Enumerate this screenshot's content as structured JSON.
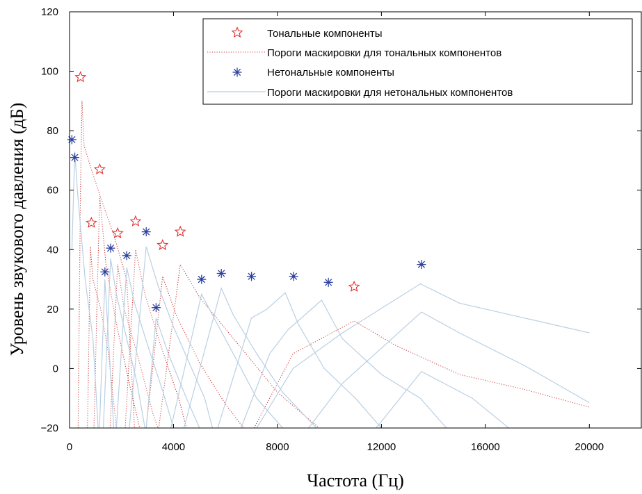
{
  "chart_data": {
    "type": "scatter",
    "xlabel": "Частота (Гц)",
    "ylabel": "Уровень звукового давления (дБ)",
    "xlim": [
      0,
      22000
    ],
    "ylim": [
      -20,
      120
    ],
    "xticks": [
      0,
      4000,
      8000,
      12000,
      16000,
      20000
    ],
    "yticks": [
      -20,
      0,
      20,
      40,
      60,
      80,
      100,
      120
    ],
    "grid": false,
    "legend_position": "top-right",
    "colors": {
      "tonal": "#e03030",
      "tonal_threshold": "#c84040",
      "nontonal": "#2b3f9e",
      "nontonal_threshold": "#b9cfe3"
    },
    "series": [
      {
        "name": "Тональные компоненты",
        "marker": "star",
        "points": [
          [
            420,
            98
          ],
          [
            840,
            49
          ],
          [
            1160,
            67
          ],
          [
            1850,
            45.5
          ],
          [
            2540,
            49.5
          ],
          [
            3580,
            41.5
          ],
          [
            4260,
            46
          ],
          [
            10950,
            27.5
          ]
        ]
      },
      {
        "name": "Пороги маскировки для тональных компонентов",
        "style": "dotted",
        "curves": [
          [
            [
              330,
              -20
            ],
            [
              420,
              60
            ],
            [
              480,
              90
            ],
            [
              560,
              75
            ],
            [
              800,
              68
            ],
            [
              1100,
              60
            ],
            [
              1700,
              45
            ],
            [
              2200,
              30
            ],
            [
              2500,
              -20
            ]
          ],
          [
            [
              690,
              -20
            ],
            [
              800,
              41
            ],
            [
              900,
              30
            ],
            [
              1200,
              20
            ],
            [
              1500,
              5
            ],
            [
              1800,
              -20
            ]
          ],
          [
            [
              940,
              -20
            ],
            [
              1160,
              58
            ],
            [
              1400,
              35
            ],
            [
              1800,
              15
            ],
            [
              2300,
              -5
            ],
            [
              2700,
              -20
            ]
          ],
          [
            [
              1560,
              -20
            ],
            [
              1850,
              35
            ],
            [
              2100,
              20
            ],
            [
              2600,
              5
            ],
            [
              3200,
              -15
            ],
            [
              3400,
              -20
            ]
          ],
          [
            [
              2140,
              -20
            ],
            [
              2540,
              40
            ],
            [
              2900,
              25
            ],
            [
              3500,
              8
            ],
            [
              4200,
              -10
            ],
            [
              4500,
              -20
            ]
          ],
          [
            [
              2950,
              -20
            ],
            [
              3580,
              31
            ],
            [
              4100,
              18
            ],
            [
              5000,
              2
            ],
            [
              6000,
              -12
            ],
            [
              6700,
              -20
            ]
          ],
          [
            [
              3430,
              -20
            ],
            [
              4260,
              35
            ],
            [
              5000,
              24
            ],
            [
              6500,
              8
            ],
            [
              8000,
              -8
            ],
            [
              9600,
              -20
            ]
          ],
          [
            [
              7100,
              -20
            ],
            [
              8600,
              5
            ],
            [
              10950,
              16
            ],
            [
              12500,
              8
            ],
            [
              15000,
              -2
            ],
            [
              17500,
              -7
            ],
            [
              20000,
              -13
            ]
          ]
        ]
      },
      {
        "name": "Нетональные компоненты",
        "marker": "asterisk",
        "points": [
          [
            90,
            77
          ],
          [
            200,
            71
          ],
          [
            1360,
            32.5
          ],
          [
            1580,
            40.5
          ],
          [
            2200,
            38
          ],
          [
            2950,
            46
          ],
          [
            3330,
            20.5
          ],
          [
            5080,
            30
          ],
          [
            5840,
            32
          ],
          [
            7000,
            31
          ],
          [
            8620,
            31
          ],
          [
            9960,
            29
          ],
          [
            13540,
            35
          ]
        ]
      },
      {
        "name": "Пороги маскировки для нетональных компонентов",
        "style": "solid",
        "curves": [
          [
            [
              90,
              40
            ],
            [
              200,
              73
            ],
            [
              300,
              60
            ],
            [
              600,
              30
            ],
            [
              900,
              10
            ],
            [
              1100,
              -20
            ]
          ],
          [
            [
              1150,
              -20
            ],
            [
              1360,
              30
            ],
            [
              1500,
              10
            ],
            [
              1700,
              -20
            ]
          ],
          [
            [
              1300,
              -20
            ],
            [
              1580,
              37
            ],
            [
              1800,
              25
            ],
            [
              2200,
              10
            ],
            [
              2600,
              -5
            ],
            [
              2900,
              -20
            ]
          ],
          [
            [
              1800,
              -20
            ],
            [
              2200,
              34
            ],
            [
              2500,
              22
            ],
            [
              3000,
              8
            ],
            [
              3600,
              -8
            ],
            [
              4000,
              -20
            ]
          ],
          [
            [
              2300,
              -20
            ],
            [
              2950,
              41
            ],
            [
              3400,
              28
            ],
            [
              4000,
              14
            ],
            [
              4700,
              0
            ],
            [
              5200,
              -10
            ],
            [
              5500,
              -20
            ]
          ],
          [
            [
              2950,
              -20
            ],
            [
              3330,
              17
            ],
            [
              3800,
              5
            ],
            [
              4500,
              -10
            ],
            [
              5000,
              -20
            ]
          ],
          [
            [
              3900,
              -20
            ],
            [
              5080,
              25
            ],
            [
              5500,
              18
            ],
            [
              6300,
              5
            ],
            [
              7200,
              -10
            ],
            [
              8200,
              -20
            ]
          ],
          [
            [
              4400,
              -20
            ],
            [
              5840,
              27
            ],
            [
              6300,
              18
            ],
            [
              7200,
              5
            ],
            [
              8200,
              -8
            ],
            [
              9500,
              -20
            ]
          ],
          [
            [
              5700,
              -20
            ],
            [
              7000,
              17
            ],
            [
              7600,
              20
            ],
            [
              8300,
              25.5
            ],
            [
              8800,
              15
            ],
            [
              9800,
              0
            ],
            [
              11000,
              -10
            ],
            [
              12000,
              -20
            ]
          ],
          [
            [
              6600,
              -20
            ],
            [
              7700,
              5
            ],
            [
              8400,
              13
            ],
            [
              9700,
              23
            ],
            [
              10500,
              10
            ],
            [
              12000,
              -2
            ],
            [
              13500,
              -10
            ],
            [
              14500,
              -20
            ]
          ],
          [
            [
              7200,
              -20
            ],
            [
              8600,
              0
            ],
            [
              10500,
              12
            ],
            [
              13500,
              28.5
            ],
            [
              15000,
              22
            ],
            [
              17000,
              18
            ],
            [
              19000,
              14
            ],
            [
              20000,
              12
            ]
          ],
          [
            [
              9200,
              -20
            ],
            [
              10500,
              -5
            ],
            [
              13540,
              19
            ],
            [
              15000,
              12
            ],
            [
              17500,
              1
            ],
            [
              20000,
              -11.5
            ]
          ],
          [
            [
              11800,
              -20
            ],
            [
              13540,
              -1
            ],
            [
              15500,
              -10
            ],
            [
              16900,
              -20
            ]
          ]
        ]
      }
    ]
  }
}
